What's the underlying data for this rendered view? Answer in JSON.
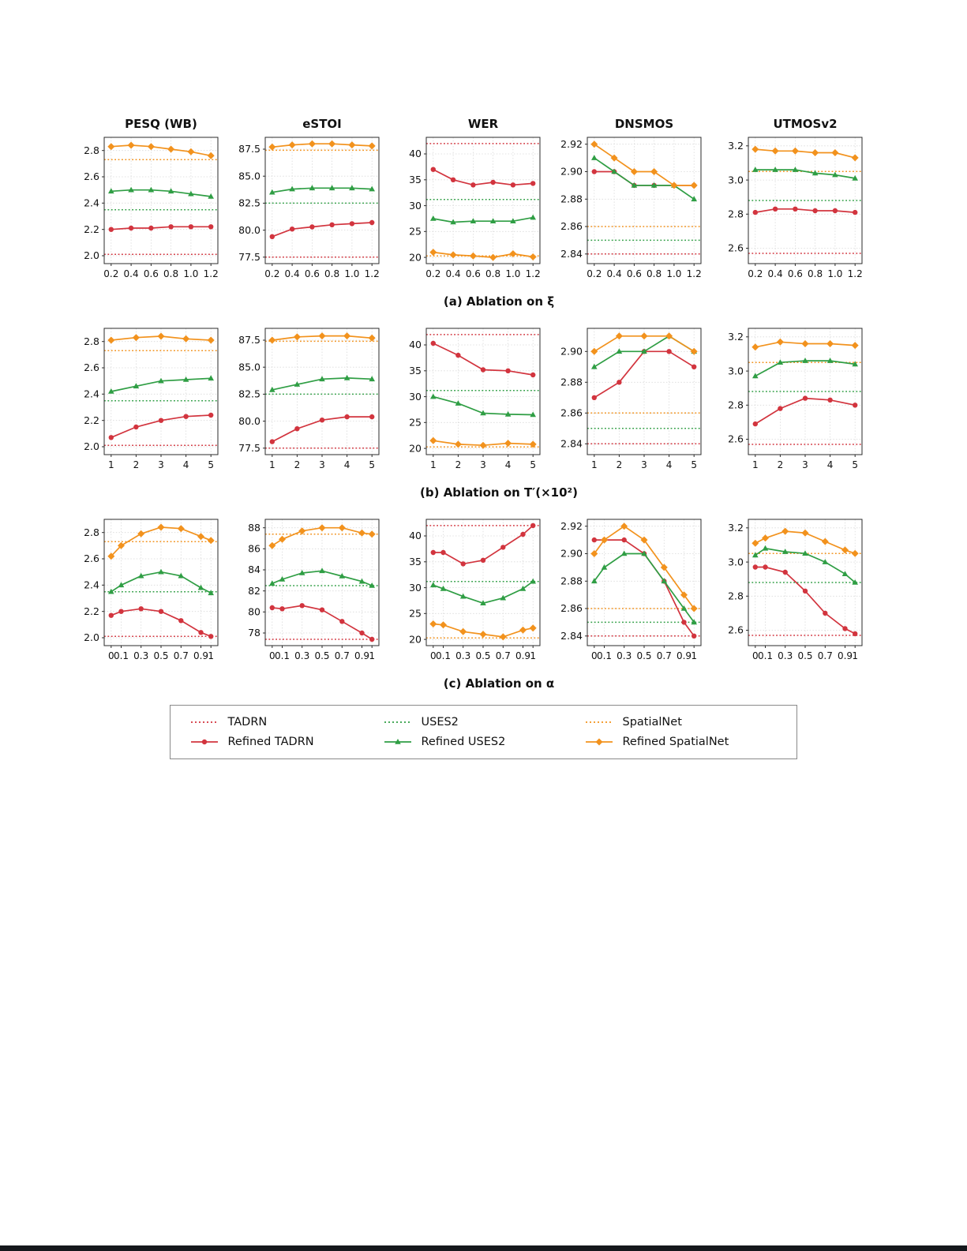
{
  "colors": {
    "tadrn": "#d2343e",
    "uses2": "#2f9e44",
    "spatialnet": "#f2921d",
    "grid": "#d9d9d9",
    "axis": "#2b2b2b"
  },
  "column_titles": [
    "PESQ (WB)",
    "eSTOI",
    "WER",
    "DNSMOS",
    "UTMOSv2"
  ],
  "captions": {
    "a": "(a) Ablation on ξ",
    "b": "(b) Ablation on T′(×10²)",
    "c": "(c) Ablation on α"
  },
  "legend": {
    "items": [
      {
        "label": "TADRN",
        "color_key": "tadrn",
        "style": "dotted"
      },
      {
        "label": "USES2",
        "color_key": "uses2",
        "style": "dotted"
      },
      {
        "label": "SpatialNet",
        "color_key": "spatialnet",
        "style": "dotted"
      },
      {
        "label": "Refined TADRN",
        "color_key": "tadrn",
        "style": "solid",
        "marker": "circle"
      },
      {
        "label": "Refined USES2",
        "color_key": "uses2",
        "style": "solid",
        "marker": "triangle"
      },
      {
        "label": "Refined SpatialNet",
        "color_key": "spatialnet",
        "style": "solid",
        "marker": "diamond"
      }
    ]
  },
  "chart_data": {
    "type": "line",
    "legend_position": "bottom",
    "grid": true,
    "rows": [
      {
        "id": "a",
        "x": [
          0.2,
          0.4,
          0.6,
          0.8,
          1.0,
          1.2
        ],
        "x_labels": [
          "0.2",
          "0.4",
          "0.6",
          "0.8",
          "1.0",
          "1.2"
        ],
        "charts": [
          {
            "metric": "PESQ (WB)",
            "ylim": [
              1.94,
              2.9
            ],
            "yticks": [
              2.0,
              2.2,
              2.4,
              2.6,
              2.8
            ],
            "ytick_labels": [
              "2.0",
              "2.2",
              "2.4",
              "2.6",
              "2.8"
            ],
            "baselines": {
              "tadrn": 2.01,
              "uses2": 2.35,
              "spatialnet": 2.73
            },
            "series": {
              "refined_tadrn": [
                2.2,
                2.21,
                2.21,
                2.22,
                2.22,
                2.22
              ],
              "refined_uses2": [
                2.49,
                2.5,
                2.5,
                2.49,
                2.47,
                2.45
              ],
              "refined_spatialnet": [
                2.83,
                2.84,
                2.83,
                2.81,
                2.79,
                2.76
              ]
            }
          },
          {
            "metric": "eSTOI",
            "ylim": [
              76.9,
              88.6
            ],
            "yticks": [
              77.5,
              80.0,
              82.5,
              85.0,
              87.5
            ],
            "ytick_labels": [
              "77.5",
              "80.0",
              "82.5",
              "85.0",
              "87.5"
            ],
            "baselines": {
              "tadrn": 77.5,
              "uses2": 82.5,
              "spatialnet": 87.4
            },
            "series": {
              "refined_tadrn": [
                79.4,
                80.1,
                80.3,
                80.5,
                80.6,
                80.7
              ],
              "refined_uses2": [
                83.5,
                83.8,
                83.9,
                83.9,
                83.9,
                83.8
              ],
              "refined_spatialnet": [
                87.7,
                87.9,
                88.0,
                88.0,
                87.9,
                87.8
              ]
            }
          },
          {
            "metric": "WER",
            "ylim": [
              18.8,
              43.2
            ],
            "yticks": [
              20,
              25,
              30,
              35,
              40
            ],
            "ytick_labels": [
              "20",
              "25",
              "30",
              "35",
              "40"
            ],
            "baselines": {
              "tadrn": 42.0,
              "uses2": 31.2,
              "spatialnet": 20.3
            },
            "series": {
              "refined_tadrn": [
                37.0,
                35.0,
                34.0,
                34.5,
                34.0,
                34.3
              ],
              "refined_uses2": [
                27.5,
                26.8,
                27.0,
                27.0,
                27.0,
                27.7
              ],
              "refined_spatialnet": [
                21.0,
                20.5,
                20.3,
                20.0,
                20.7,
                20.1
              ]
            }
          },
          {
            "metric": "DNSMOS",
            "ylim": [
              2.833,
              2.925
            ],
            "yticks": [
              2.84,
              2.86,
              2.88,
              2.9,
              2.92
            ],
            "ytick_labels": [
              "2.84",
              "2.86",
              "2.88",
              "2.90",
              "2.92"
            ],
            "baselines": {
              "tadrn": 2.84,
              "uses2": 2.85,
              "spatialnet": 2.86
            },
            "series": {
              "refined_tadrn": [
                2.9,
                2.9,
                2.89,
                2.89,
                2.89,
                2.89
              ],
              "refined_uses2": [
                2.91,
                2.9,
                2.89,
                2.89,
                2.89,
                2.88
              ],
              "refined_spatialnet": [
                2.92,
                2.91,
                2.9,
                2.9,
                2.89,
                2.89
              ]
            }
          },
          {
            "metric": "UTMOSv2",
            "ylim": [
              2.51,
              3.25
            ],
            "yticks": [
              2.6,
              2.8,
              3.0,
              3.2
            ],
            "ytick_labels": [
              "2.6",
              "2.8",
              "3.0",
              "3.2"
            ],
            "baselines": {
              "tadrn": 2.57,
              "uses2": 2.88,
              "spatialnet": 3.05
            },
            "series": {
              "refined_tadrn": [
                2.81,
                2.83,
                2.83,
                2.82,
                2.82,
                2.81
              ],
              "refined_uses2": [
                3.06,
                3.06,
                3.06,
                3.04,
                3.03,
                3.01
              ],
              "refined_spatialnet": [
                3.18,
                3.17,
                3.17,
                3.16,
                3.16,
                3.13
              ]
            }
          }
        ]
      },
      {
        "id": "b",
        "x": [
          1,
          2,
          3,
          4,
          5
        ],
        "x_labels": [
          "1",
          "2",
          "3",
          "4",
          "5"
        ],
        "charts": [
          {
            "metric": "PESQ (WB)",
            "ylim": [
              1.94,
              2.9
            ],
            "yticks": [
              2.0,
              2.2,
              2.4,
              2.6,
              2.8
            ],
            "ytick_labels": [
              "2.0",
              "2.2",
              "2.4",
              "2.6",
              "2.8"
            ],
            "baselines": {
              "tadrn": 2.01,
              "uses2": 2.35,
              "spatialnet": 2.73
            },
            "series": {
              "refined_tadrn": [
                2.07,
                2.15,
                2.2,
                2.23,
                2.24
              ],
              "refined_uses2": [
                2.42,
                2.46,
                2.5,
                2.51,
                2.52
              ],
              "refined_spatialnet": [
                2.81,
                2.83,
                2.84,
                2.82,
                2.81
              ]
            }
          },
          {
            "metric": "eSTOI",
            "ylim": [
              76.9,
              88.6
            ],
            "yticks": [
              77.5,
              80.0,
              82.5,
              85.0,
              87.5
            ],
            "ytick_labels": [
              "77.5",
              "80.0",
              "82.5",
              "85.0",
              "87.5"
            ],
            "baselines": {
              "tadrn": 77.5,
              "uses2": 82.5,
              "spatialnet": 87.4
            },
            "series": {
              "refined_tadrn": [
                78.1,
                79.3,
                80.1,
                80.4,
                80.4
              ],
              "refined_uses2": [
                82.9,
                83.4,
                83.9,
                84.0,
                83.9
              ],
              "refined_spatialnet": [
                87.5,
                87.8,
                87.9,
                87.9,
                87.7
              ]
            }
          },
          {
            "metric": "WER",
            "ylim": [
              18.8,
              43.2
            ],
            "yticks": [
              20,
              25,
              30,
              35,
              40
            ],
            "ytick_labels": [
              "20",
              "25",
              "30",
              "35",
              "40"
            ],
            "baselines": {
              "tadrn": 42.0,
              "uses2": 31.2,
              "spatialnet": 20.3
            },
            "series": {
              "refined_tadrn": [
                40.3,
                38.0,
                35.2,
                35.0,
                34.2
              ],
              "refined_uses2": [
                30.0,
                28.7,
                26.8,
                26.6,
                26.5
              ],
              "refined_spatialnet": [
                21.5,
                20.8,
                20.6,
                21.0,
                20.8
              ]
            }
          },
          {
            "metric": "DNSMOS",
            "ylim": [
              2.833,
              2.915
            ],
            "yticks": [
              2.84,
              2.86,
              2.88,
              2.9
            ],
            "ytick_labels": [
              "2.84",
              "2.86",
              "2.88",
              "2.90"
            ],
            "baselines": {
              "tadrn": 2.84,
              "uses2": 2.85,
              "spatialnet": 2.86
            },
            "series": {
              "refined_tadrn": [
                2.87,
                2.88,
                2.9,
                2.9,
                2.89
              ],
              "refined_uses2": [
                2.89,
                2.9,
                2.9,
                2.91,
                2.9
              ],
              "refined_spatialnet": [
                2.9,
                2.91,
                2.91,
                2.91,
                2.9
              ]
            }
          },
          {
            "metric": "UTMOSv2",
            "ylim": [
              2.51,
              3.25
            ],
            "yticks": [
              2.6,
              2.8,
              3.0,
              3.2
            ],
            "ytick_labels": [
              "2.6",
              "2.8",
              "3.0",
              "3.2"
            ],
            "baselines": {
              "tadrn": 2.57,
              "uses2": 2.88,
              "spatialnet": 3.05
            },
            "series": {
              "refined_tadrn": [
                2.69,
                2.78,
                2.84,
                2.83,
                2.8
              ],
              "refined_uses2": [
                2.97,
                3.05,
                3.06,
                3.06,
                3.04
              ],
              "refined_spatialnet": [
                3.14,
                3.17,
                3.16,
                3.16,
                3.15
              ]
            }
          }
        ]
      },
      {
        "id": "c",
        "x": [
          0,
          0.1,
          0.3,
          0.5,
          0.7,
          0.9,
          1
        ],
        "x_labels": [
          "0",
          "0.1",
          "0.3",
          "0.5",
          "0.7",
          "0.9",
          "1"
        ],
        "charts": [
          {
            "metric": "PESQ (WB)",
            "ylim": [
              1.94,
              2.9
            ],
            "yticks": [
              2.0,
              2.2,
              2.4,
              2.6,
              2.8
            ],
            "ytick_labels": [
              "2.0",
              "2.2",
              "2.4",
              "2.6",
              "2.8"
            ],
            "baselines": {
              "tadrn": 2.01,
              "uses2": 2.35,
              "spatialnet": 2.73
            },
            "series": {
              "refined_tadrn": [
                2.17,
                2.2,
                2.22,
                2.2,
                2.13,
                2.04,
                2.01
              ],
              "refined_uses2": [
                2.35,
                2.4,
                2.47,
                2.5,
                2.47,
                2.38,
                2.34
              ],
              "refined_spatialnet": [
                2.62,
                2.7,
                2.79,
                2.84,
                2.83,
                2.77,
                2.74
              ]
            }
          },
          {
            "metric": "eSTOI",
            "ylim": [
              76.8,
              88.8
            ],
            "yticks": [
              78,
              80,
              82,
              84,
              86,
              88
            ],
            "ytick_labels": [
              "78",
              "80",
              "82",
              "84",
              "86",
              "88"
            ],
            "baselines": {
              "tadrn": 77.4,
              "uses2": 82.5,
              "spatialnet": 87.4
            },
            "series": {
              "refined_tadrn": [
                80.4,
                80.3,
                80.6,
                80.2,
                79.1,
                78.0,
                77.4
              ],
              "refined_uses2": [
                82.7,
                83.1,
                83.7,
                83.9,
                83.4,
                82.9,
                82.5
              ],
              "refined_spatialnet": [
                86.3,
                86.9,
                87.7,
                88.0,
                88.0,
                87.5,
                87.4
              ]
            }
          },
          {
            "metric": "WER",
            "ylim": [
              18.8,
              43.2
            ],
            "yticks": [
              20,
              25,
              30,
              35,
              40
            ],
            "ytick_labels": [
              "20",
              "25",
              "30",
              "35",
              "40"
            ],
            "baselines": {
              "tadrn": 42.0,
              "uses2": 31.2,
              "spatialnet": 20.3
            },
            "series": {
              "refined_tadrn": [
                36.8,
                36.8,
                34.6,
                35.3,
                37.8,
                40.3,
                42.0
              ],
              "refined_uses2": [
                30.5,
                29.8,
                28.3,
                27.0,
                28.0,
                29.8,
                31.2
              ],
              "refined_spatialnet": [
                23.0,
                22.8,
                21.5,
                21.0,
                20.5,
                21.8,
                22.2
              ]
            }
          },
          {
            "metric": "DNSMOS",
            "ylim": [
              2.833,
              2.925
            ],
            "yticks": [
              2.84,
              2.86,
              2.88,
              2.9,
              2.92
            ],
            "ytick_labels": [
              "2.84",
              "2.86",
              "2.88",
              "2.90",
              "2.92"
            ],
            "baselines": {
              "tadrn": 2.84,
              "uses2": 2.85,
              "spatialnet": 2.86
            },
            "series": {
              "refined_tadrn": [
                2.91,
                2.91,
                2.91,
                2.9,
                2.88,
                2.85,
                2.84
              ],
              "refined_uses2": [
                2.88,
                2.89,
                2.9,
                2.9,
                2.88,
                2.86,
                2.85
              ],
              "refined_spatialnet": [
                2.9,
                2.91,
                2.92,
                2.91,
                2.89,
                2.87,
                2.86
              ]
            }
          },
          {
            "metric": "UTMOSv2",
            "ylim": [
              2.51,
              3.25
            ],
            "yticks": [
              2.6,
              2.8,
              3.0,
              3.2
            ],
            "ytick_labels": [
              "2.6",
              "2.8",
              "3.0",
              "3.2"
            ],
            "baselines": {
              "tadrn": 2.57,
              "uses2": 2.88,
              "spatialnet": 3.05
            },
            "series": {
              "refined_tadrn": [
                2.97,
                2.97,
                2.94,
                2.83,
                2.7,
                2.61,
                2.58
              ],
              "refined_uses2": [
                3.04,
                3.08,
                3.06,
                3.05,
                3.0,
                2.93,
                2.88
              ],
              "refined_spatialnet": [
                3.11,
                3.14,
                3.18,
                3.17,
                3.12,
                3.07,
                3.05
              ]
            }
          }
        ]
      }
    ]
  }
}
